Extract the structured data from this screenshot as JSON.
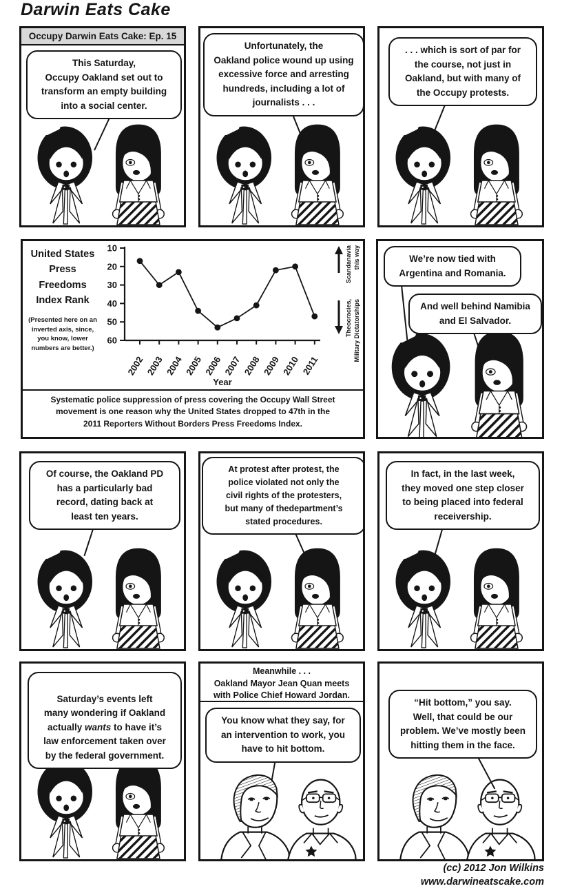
{
  "page": {
    "title": "Darwin Eats Cake",
    "credit1": "(cc) 2012 Jon Wilkins",
    "credit2": "www.darwineatscake.com",
    "ink_color": "#151515",
    "header_bg": "#d8d8d8"
  },
  "panels": {
    "p1": {
      "header": "Occupy Darwin Eats Cake: Ep. 15",
      "bubble": "This Saturday,\nOccupy Oakland set out to\ntransform an empty building\ninto a social center."
    },
    "p2": {
      "bubble": "Unfortunately, the\nOakland police wound up using\nexcessive force and arresting\nhundreds, including a lot of\njournalists . . ."
    },
    "p3": {
      "bubble": ". . . which is sort of par for\nthe course, not just in\nOakland, but with many of\nthe Occupy protests."
    },
    "p4": {
      "bubble1": "We’re now tied with\nArgentina and Romania.",
      "bubble2": "And well behind Namibia\nand El Salvador."
    },
    "p5": {
      "bubble": "Of course, the Oakland PD\nhas a particularly bad\nrecord, dating back at\nleast ten years."
    },
    "p6": {
      "bubble": "At protest after protest, the\npolice violated not only the\ncivil rights of the protesters,\nbut many of thedepartment’s\nstated procedures."
    },
    "p7": {
      "bubble": "In fact, in the last week,\nthey moved one step closer\nto being placed into federal\nreceivership."
    },
    "p8": {
      "bubble_pre": "Saturday’s events left\nmany wondering if Oakland\nactually ",
      "bubble_italic": "wants",
      "bubble_post": " to have it’s\nlaw enforcement taken over\nby the federal government."
    },
    "p9": {
      "caption": "Meanwhile . . .\nOakland Mayor Jean Quan meets\nwith Police Chief Howard Jordan.",
      "bubble": "You know what they say, for\nan intervention to work, you\nhave to hit bottom."
    },
    "p10": {
      "bubble": "“Hit bottom,” you say.\nWell, that could be our\nproblem. We’ve mostly been\nhitting them in the face."
    }
  },
  "chart_data": {
    "type": "line",
    "title": "United States Press Freedoms Index Rank",
    "title_lines": [
      "United States",
      "Press",
      "Freedoms",
      "Index Rank"
    ],
    "note": "(Presented here on an\ninverted axis, since,\nyou know, lower\nnumbers are better.)",
    "x": [
      2002,
      2003,
      2004,
      2005,
      2006,
      2007,
      2008,
      2009,
      2010,
      2011
    ],
    "values": [
      17,
      30,
      23,
      44,
      53,
      48,
      41,
      22,
      20,
      47
    ],
    "xlabel": "Year",
    "ylabel": "Press Freedoms Index Rank",
    "yticks": [
      10,
      20,
      30,
      40,
      50,
      60
    ],
    "ylim": [
      10,
      60
    ],
    "y_axis_inverted": true,
    "grid": false,
    "legend": false,
    "annotation_up_lines": [
      "Scandanavia",
      "this way"
    ],
    "annotation_down_lines": [
      "Theocracies,",
      "Military Dictatorships"
    ],
    "caption": "Systematic police suppression of press covering the Occupy Wall Street\nmovement is one reason why the United States dropped to 47th in the\n2011 Reporters Without Borders Press Freedoms Index."
  }
}
